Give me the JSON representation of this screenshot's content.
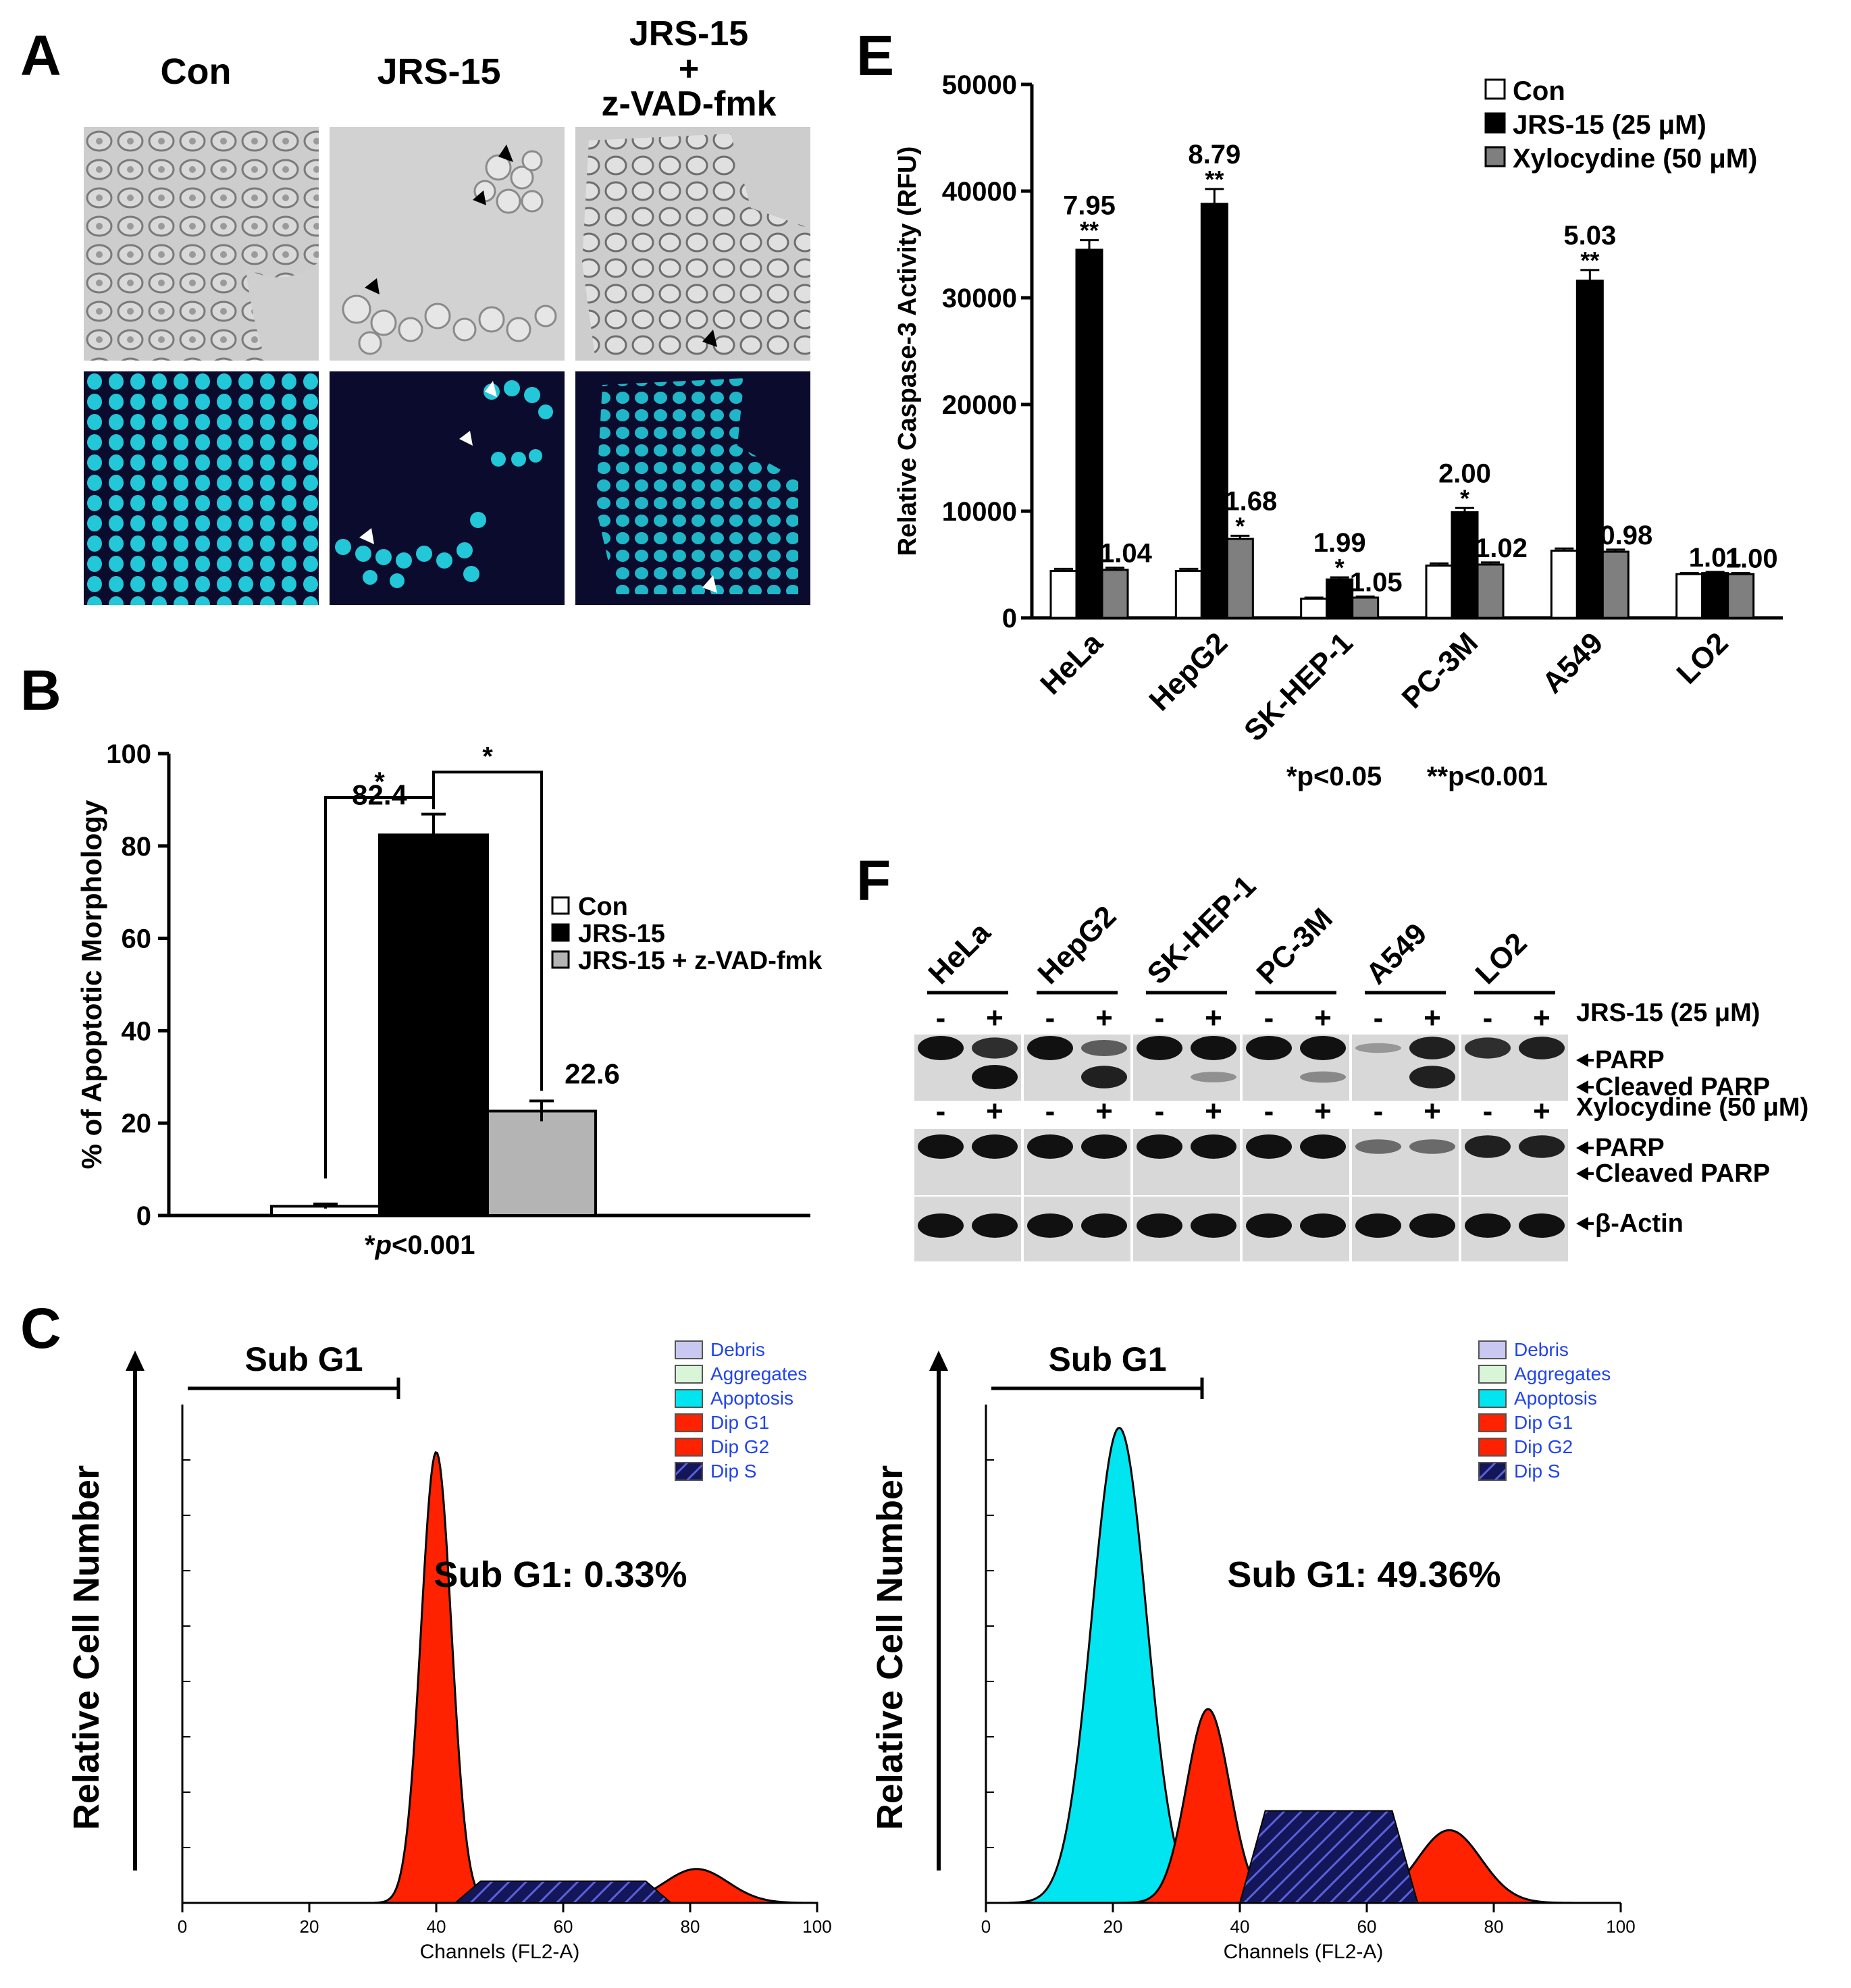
{
  "panels": {
    "A": {
      "label": "A",
      "columns": [
        "Con",
        "JRS-15",
        "JRS-15\n+\nz-VAD-fmk"
      ]
    },
    "B": {
      "label": "B",
      "footnote_star": "*",
      "footnote_p": "p",
      "footnote_rest": "<0.001",
      "sig_marks": [
        "*",
        "*"
      ],
      "legend": [
        "Con",
        "JRS-15",
        "JRS-15 + z-VAD-fmk"
      ]
    },
    "C": {
      "label": "C",
      "ylabel": "Relative Cell Number",
      "xlabel": "Channels (FL2-A)",
      "subg1_title": "Sub G1",
      "legend": [
        "Debris",
        "Aggregates",
        "Apoptosis",
        "Dip G1",
        "Dip G2",
        "Dip S"
      ],
      "left_stat": "Sub G1: 0.33%",
      "right_stat": "Sub G1:  49.36%"
    },
    "E": {
      "label": "E",
      "footnote": "*p<0.05      **p<0.001"
    },
    "F": {
      "label": "F",
      "lanes": [
        "HeLa",
        "HepG2",
        "SK-HEP-1",
        "PC-3M",
        "A549",
        "LO2"
      ],
      "minus": "-",
      "plus": "+",
      "treat1": "JRS-15 (25 μM)",
      "treat2": "Xylocydine (50 μM)",
      "band_parp": "PARP",
      "band_cleaved": "Cleaved PARP",
      "band_actin": "β-Actin"
    }
  },
  "chart_data": [
    {
      "type": "bar",
      "panel": "B",
      "categories": [
        "Con",
        "JRS-15",
        "JRS-15 + z-VAD-fmk"
      ],
      "values": [
        2,
        82.4,
        22.6
      ],
      "errors": [
        0.5,
        4.5,
        2.2
      ],
      "value_labels": [
        "",
        "82.4",
        "22.6"
      ],
      "ylabel": "% of Apoptotic Morphology",
      "ylim": [
        0,
        100
      ],
      "yticks": [
        0,
        20,
        40,
        60,
        80,
        100
      ],
      "colors": [
        "#ffffff",
        "#000000",
        "#b4b4b4"
      ],
      "legend_position": "right"
    },
    {
      "type": "bar",
      "panel": "E",
      "categories": [
        "HeLa",
        "HepG2",
        "SK-HEP-1",
        "PC-3M",
        "A549",
        "LO2"
      ],
      "series": [
        {
          "name": "Con",
          "values": [
            4400,
            4400,
            1800,
            4900,
            6300,
            4100
          ],
          "errors": [
            200,
            200,
            100,
            200,
            200,
            100
          ],
          "labels": [
            "",
            "",
            "",
            "",
            "",
            ""
          ],
          "sig": [
            "",
            "",
            "",
            "",
            "",
            ""
          ],
          "color": "#ffffff"
        },
        {
          "name": "JRS-15 (25 μM)",
          "values": [
            34500,
            38800,
            3600,
            9900,
            31600,
            4200
          ],
          "errors": [
            900,
            1400,
            200,
            400,
            1000,
            100
          ],
          "labels": [
            "7.95",
            "8.79",
            "1.99",
            "2.00",
            "5.03",
            "1.01"
          ],
          "sig": [
            "**",
            "**",
            "*",
            "*",
            "**",
            ""
          ],
          "color": "#000000"
        },
        {
          "name": "Xylocydine (50 μM)",
          "values": [
            4500,
            7400,
            1900,
            5000,
            6200,
            4100
          ],
          "errors": [
            200,
            300,
            100,
            200,
            200,
            100
          ],
          "labels": [
            "1.04",
            "1.68",
            "1.05",
            "1.02",
            "0.98",
            "1.00"
          ],
          "sig": [
            "",
            "*",
            "",
            "",
            "",
            ""
          ],
          "color": "#7f7f7f"
        }
      ],
      "ylabel": "Relative Caspase-3 Activity (RFU)",
      "ylim": [
        0,
        50000
      ],
      "yticks": [
        0,
        10000,
        20000,
        30000,
        40000,
        50000
      ],
      "legend_position": "top-right"
    },
    {
      "type": "area",
      "panel": "C-left",
      "xlabel": "Channels (FL2-A)",
      "xlim": [
        0,
        100
      ],
      "xticks": [
        0,
        20,
        40,
        60,
        80,
        100
      ],
      "peaks": [
        {
          "name": "Dip G1",
          "center": 40,
          "height": 0.93,
          "color": "#ff2200"
        },
        {
          "name": "Dip G2",
          "center": 81,
          "height": 0.07,
          "color": "#ff2200"
        },
        {
          "name": "Dip S",
          "from": 43,
          "to": 77,
          "height": 0.045,
          "color": "#14165a"
        }
      ]
    },
    {
      "type": "area",
      "panel": "C-right",
      "xlabel": "Channels (FL2-A)",
      "xlim": [
        0,
        100
      ],
      "xticks": [
        0,
        20,
        40,
        60,
        80,
        100
      ],
      "peaks": [
        {
          "name": "Apoptosis",
          "center": 21,
          "height": 0.98,
          "color": "#00e5f0"
        },
        {
          "name": "Dip G1",
          "center": 35,
          "height": 0.4,
          "color": "#ff2200"
        },
        {
          "name": "Dip G2",
          "center": 73,
          "height": 0.15,
          "color": "#ff2200"
        },
        {
          "name": "Dip S",
          "from": 40,
          "to": 68,
          "height": 0.19,
          "color": "#14165a"
        }
      ]
    }
  ],
  "colors": {
    "g1": "#ff2200",
    "apoptosis": "#00e5f0",
    "dip_s": "#14165a",
    "debris": "#c8c8f0",
    "aggregates": "#d8f5d8",
    "nuclei": "#22c7d8",
    "legend_text": "#2244ee"
  }
}
